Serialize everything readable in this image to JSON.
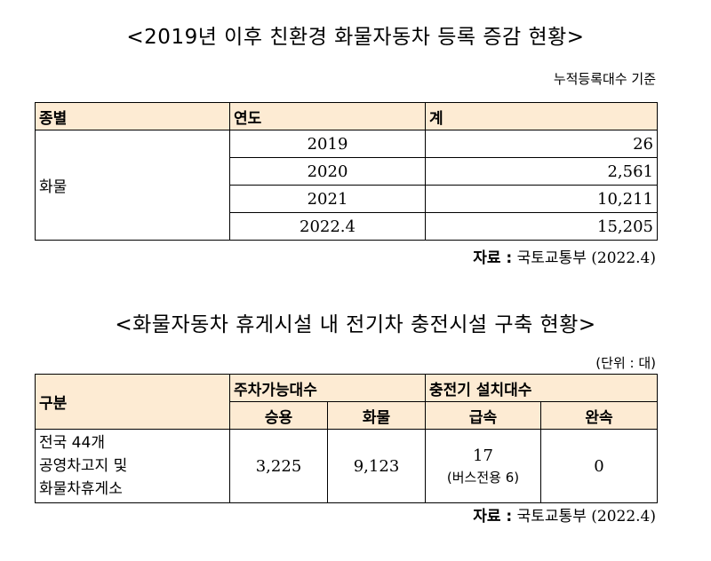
{
  "table1": {
    "title": "<2019년 이후 친환경 화물자동차 등록 증감 현황>",
    "note": "누적등록대수 기준",
    "headers": [
      "종별",
      "연도",
      "계"
    ],
    "category": "화물",
    "rows": [
      {
        "year": "2019",
        "total": "26"
      },
      {
        "year": "2020",
        "total": "2,561"
      },
      {
        "year": "2021",
        "total": "10,211"
      },
      {
        "year": "2022.4",
        "total": "15,205"
      }
    ],
    "source_label": "자료 :",
    "source_text": "국토교통부 (2022.4)"
  },
  "table2": {
    "title": "<화물자동차 휴게시설 내 전기차 충전시설 구축 현황>",
    "unit": "(단위 : 대)",
    "header_group": "구분",
    "header_parking": "주차가능대수",
    "header_charger": "충전기 설치대수",
    "sub_passenger": "승용",
    "sub_cargo": "화물",
    "sub_fast": "급속",
    "sub_slow": "완속",
    "row_label_lines": [
      "전국 44개",
      "공영차고지 및",
      "화물차휴게소"
    ],
    "passenger": "3,225",
    "cargo": "9,123",
    "fast": "17",
    "fast_note": "(버스전용 6)",
    "slow": "0",
    "source_label": "자료 :",
    "source_text": "국토교통부 (2022.4)"
  }
}
